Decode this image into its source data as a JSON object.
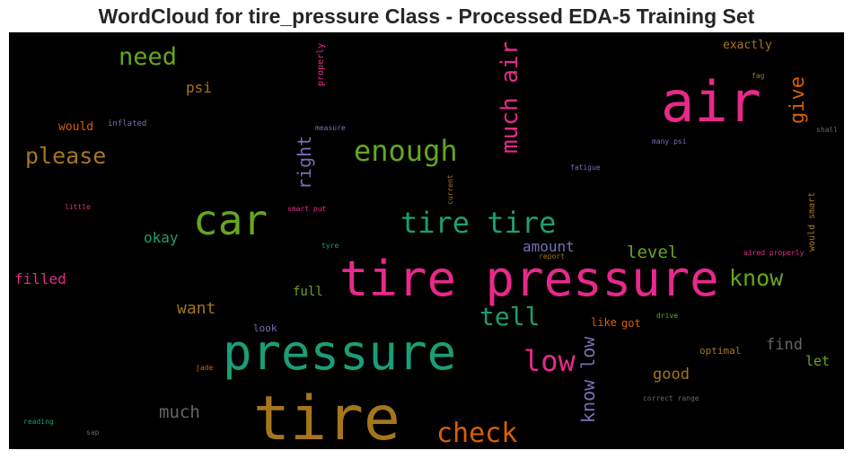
{
  "chart_data": {
    "type": "wordcloud",
    "title": "WordCloud for tire_pressure Class - Processed EDA-5 Training Set",
    "background": "#000000",
    "words": [
      {
        "text": "tire pressure",
        "color": "#e7298a",
        "size": 54
      },
      {
        "text": "tire",
        "color": "#a6761d",
        "size": 68
      },
      {
        "text": "pressure",
        "color": "#1b9e77",
        "size": 54
      },
      {
        "text": "air",
        "color": "#e7298a",
        "size": 62
      },
      {
        "text": "car",
        "color": "#66a61e",
        "size": 46
      },
      {
        "text": "tire tire",
        "color": "#1b9e77",
        "size": 32
      },
      {
        "text": "enough",
        "color": "#66a61e",
        "size": 32
      },
      {
        "text": "much air",
        "color": "#e7298a",
        "size": 26,
        "rotate": true
      },
      {
        "text": "need",
        "color": "#66a61e",
        "size": 27
      },
      {
        "text": "please",
        "color": "#a6761d",
        "size": 25
      },
      {
        "text": "check",
        "color": "#d95f02",
        "size": 30
      },
      {
        "text": "low",
        "color": "#e7298a",
        "size": 32
      },
      {
        "text": "tell",
        "color": "#1b9e77",
        "size": 28
      },
      {
        "text": "know",
        "color": "#66a61e",
        "size": 25
      },
      {
        "text": "give",
        "color": "#d95f02",
        "size": 22,
        "rotate": true
      },
      {
        "text": "right",
        "color": "#7570b3",
        "size": 20,
        "rotate": true
      },
      {
        "text": "know low",
        "color": "#7570b3",
        "size": 20,
        "rotate": true
      },
      {
        "text": "level",
        "color": "#66a61e",
        "size": 19
      },
      {
        "text": "amount",
        "color": "#7570b3",
        "size": 16
      },
      {
        "text": "okay",
        "color": "#1b9e77",
        "size": 16
      },
      {
        "text": "filled",
        "color": "#e7298a",
        "size": 16
      },
      {
        "text": "want",
        "color": "#a6761d",
        "size": 18
      },
      {
        "text": "full",
        "color": "#66a61e",
        "size": 14
      },
      {
        "text": "much",
        "color": "#666666",
        "size": 19
      },
      {
        "text": "good",
        "color": "#a6761d",
        "size": 17
      },
      {
        "text": "find",
        "color": "#666666",
        "size": 17
      },
      {
        "text": "let",
        "color": "#66a61e",
        "size": 15
      },
      {
        "text": "psi",
        "color": "#a6761d",
        "size": 16
      },
      {
        "text": "would",
        "color": "#d95f02",
        "size": 13
      },
      {
        "text": "exactly",
        "color": "#a6761d",
        "size": 13
      },
      {
        "text": "properly",
        "color": "#e7298a",
        "size": 10,
        "rotate": true
      },
      {
        "text": "inflated",
        "color": "#7570b3",
        "size": 9
      },
      {
        "text": "measure",
        "color": "#7570b3",
        "size": 8
      },
      {
        "text": "many psi",
        "color": "#7570b3",
        "size": 8
      },
      {
        "text": "fatigue",
        "color": "#7570b3",
        "size": 8
      },
      {
        "text": "current",
        "color": "#a6761d",
        "size": 8,
        "rotate": true
      },
      {
        "text": "little",
        "color": "#e7298a",
        "size": 8
      },
      {
        "text": "smart put",
        "color": "#e7298a",
        "size": 8
      },
      {
        "text": "tyre",
        "color": "#1b9e77",
        "size": 8
      },
      {
        "text": "report",
        "color": "#a6761d",
        "size": 8
      },
      {
        "text": "would smart",
        "color": "#a6761d",
        "size": 10,
        "rotate": true
      },
      {
        "text": "aired properly",
        "color": "#e7298a",
        "size": 8
      },
      {
        "text": "shall",
        "color": "#666666",
        "size": 8
      },
      {
        "text": "fag",
        "color": "#a6761d",
        "size": 8
      },
      {
        "text": "look",
        "color": "#7570b3",
        "size": 11
      },
      {
        "text": "like",
        "color": "#d95f02",
        "size": 12
      },
      {
        "text": "got",
        "color": "#d95f02",
        "size": 12
      },
      {
        "text": "drive",
        "color": "#66a61e",
        "size": 8
      },
      {
        "text": "optimal",
        "color": "#a6761d",
        "size": 11
      },
      {
        "text": "correct range",
        "color": "#666666",
        "size": 8
      },
      {
        "text": "jade",
        "color": "#d95f02",
        "size": 8
      },
      {
        "text": "reading",
        "color": "#1b9e77",
        "size": 8
      },
      {
        "text": "sap",
        "color": "#666666",
        "size": 8
      }
    ]
  }
}
